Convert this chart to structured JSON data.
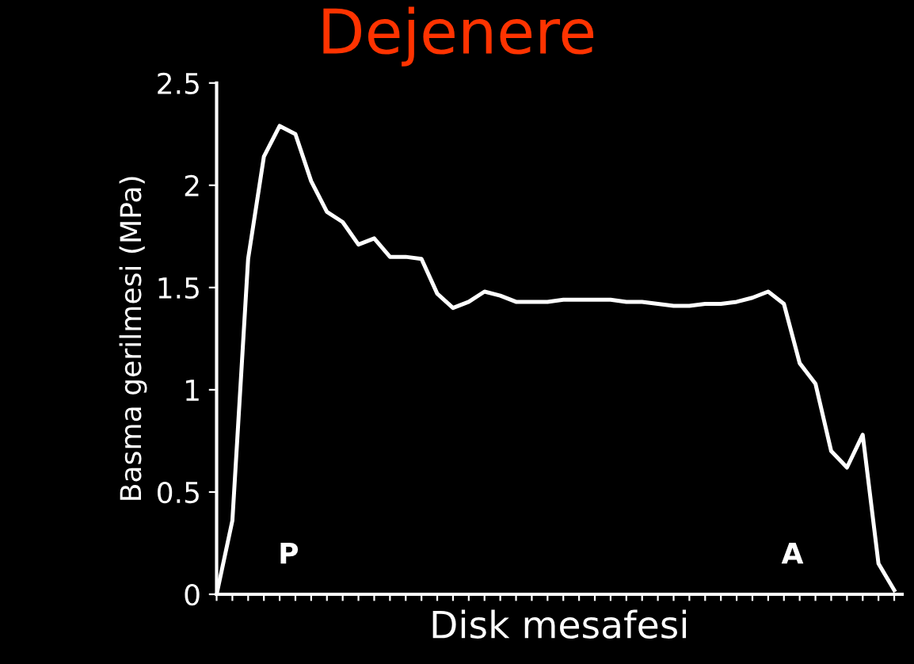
{
  "chart_data": {
    "type": "line",
    "title": "Dejenere",
    "xlabel": "Disk mesafesi",
    "ylabel": "Basma gerilmesi (MPa)",
    "annotations": [
      "P",
      "A"
    ],
    "categories": [
      null,
      null,
      null,
      null,
      null,
      null,
      null,
      null,
      null,
      null,
      null,
      null,
      null,
      null,
      null,
      null,
      null,
      null,
      null,
      null,
      null,
      null,
      null,
      null,
      null,
      null,
      null,
      null,
      null,
      null,
      null,
      null,
      null,
      null,
      null,
      null,
      null,
      null,
      null,
      null,
      null,
      null,
      null,
      null
    ],
    "series": [
      {
        "color": "#ffffff",
        "values": [
          0,
          0.36,
          1.64,
          2.14,
          2.29,
          2.25,
          2.02,
          1.87,
          1.82,
          1.71,
          1.74,
          1.65,
          1.65,
          1.64,
          1.47,
          1.4,
          1.43,
          1.48,
          1.46,
          1.43,
          1.43,
          1.43,
          1.44,
          1.44,
          1.44,
          1.44,
          1.43,
          1.43,
          1.42,
          1.41,
          1.41,
          1.42,
          1.42,
          1.43,
          1.45,
          1.48,
          1.42,
          1.13,
          1.03,
          0.7,
          0.62,
          0.78,
          0.15,
          0.02
        ]
      }
    ],
    "ylim": [
      0,
      2.5
    ],
    "yticks": [
      0,
      0.5,
      1,
      1.5,
      2,
      2.5
    ],
    "tick_labels": "y",
    "grid": false,
    "legend": false,
    "marker": "none",
    "line_style": "solid"
  }
}
